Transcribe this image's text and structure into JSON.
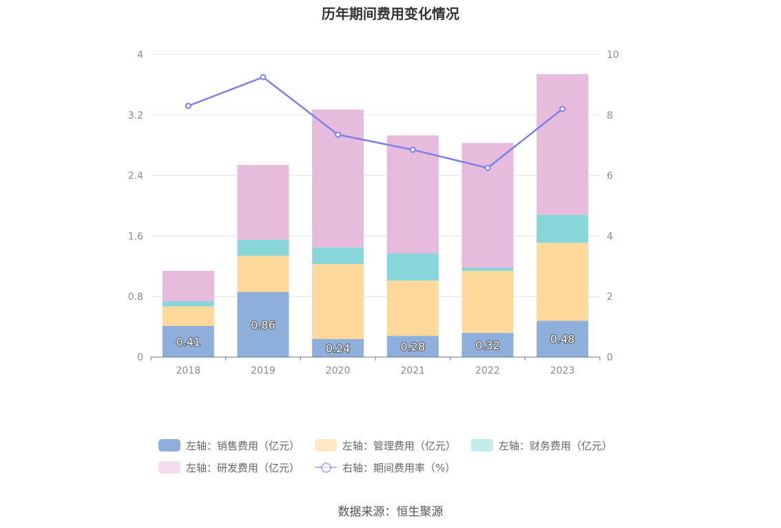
{
  "chart_data": {
    "type": "bar",
    "title": "历年期间费用变化情况",
    "categories": [
      "2018",
      "2019",
      "2020",
      "2021",
      "2022",
      "2023"
    ],
    "stacked": true,
    "series": [
      {
        "name": "左轴：销售费用（亿元）",
        "axis": "left",
        "color": "#8eaedc",
        "values": [
          0.41,
          0.86,
          0.24,
          0.28,
          0.32,
          0.48
        ],
        "labels": [
          "0.41",
          "0.86",
          "0.24",
          "0.28",
          "0.32",
          "0.48"
        ]
      },
      {
        "name": "左轴：管理费用（亿元）",
        "axis": "left",
        "color": "#fed99b",
        "values": [
          0.26,
          0.48,
          0.99,
          0.73,
          0.82,
          1.03
        ]
      },
      {
        "name": "左轴：财务费用（亿元）",
        "axis": "left",
        "color": "#86d6da",
        "values": [
          0.07,
          0.21,
          0.22,
          0.36,
          0.04,
          0.37
        ]
      },
      {
        "name": "左轴：研发费用（亿元）",
        "axis": "left",
        "color": "#e6bbdc",
        "values": [
          0.4,
          0.99,
          1.82,
          1.56,
          1.65,
          1.86
        ]
      },
      {
        "name": "右轴：期间费用率（%）",
        "axis": "right",
        "type": "line",
        "color": "#7b7fea",
        "values": [
          8.3,
          9.25,
          7.35,
          6.85,
          6.25,
          8.2
        ]
      }
    ],
    "left_axis": {
      "min": 0,
      "max": 4,
      "ticks": [
        "0",
        "0.8",
        "1.6",
        "2.4",
        "3.2",
        "4"
      ]
    },
    "right_axis": {
      "min": 0,
      "max": 10,
      "ticks": [
        "0",
        "2",
        "4",
        "6",
        "8",
        "10"
      ]
    },
    "grid": true,
    "legend_position": "bottom"
  },
  "legend": {
    "sales": "左轴：销售费用（亿元）",
    "admin": "左轴：管理费用（亿元）",
    "finance": "左轴：财务费用（亿元）",
    "rnd": "左轴：研发费用（亿元）",
    "rate": "右轴：期间费用率（%）"
  },
  "colors": {
    "sales": "#8eaedc",
    "admin": "#fed99b",
    "finance": "#86d6da",
    "rnd": "#e6bbdc",
    "rate": "#7b7fea",
    "legend_admin": "#fde8c6",
    "legend_finance": "#c2ebec",
    "legend_rnd": "#f2dcee"
  },
  "source": "数据来源：恒生聚源"
}
